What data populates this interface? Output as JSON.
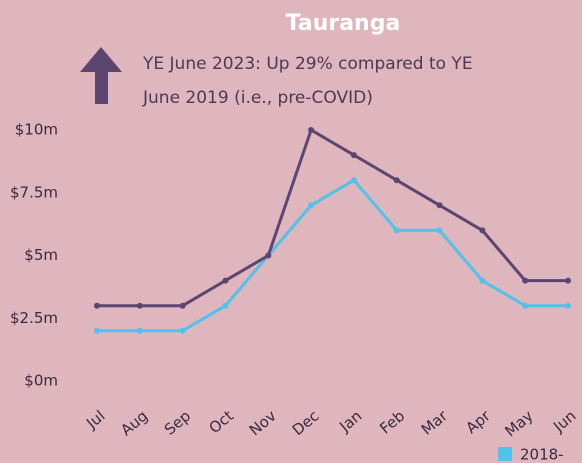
{
  "chart_data": {
    "type": "line",
    "title": "Tauranga",
    "annotation": [
      "YE June 2023: Up 29% compared to YE",
      "June 2019 (i.e., pre-COVID)"
    ],
    "categories": [
      "Jul",
      "Aug",
      "Sep",
      "Oct",
      "Nov",
      "Dec",
      "Jan",
      "Feb",
      "Mar",
      "Apr",
      "May",
      "Jun"
    ],
    "series": [
      {
        "name": "2018-",
        "color": "#4fc3ea",
        "values": [
          2,
          2,
          2,
          3,
          5,
          7,
          8,
          6,
          6,
          4,
          3,
          3
        ]
      },
      {
        "color": "#5c4670",
        "values": [
          3,
          3,
          3,
          4,
          5,
          10,
          9,
          8,
          7,
          6,
          4,
          4
        ]
      }
    ],
    "ylim": [
      0,
      10
    ],
    "yticks": [
      {
        "value": 0,
        "label": "$0m"
      },
      {
        "value": 2.5,
        "label": "$2.5m"
      },
      {
        "value": 5,
        "label": "$5m"
      },
      {
        "value": 7.5,
        "label": "$7.5m"
      },
      {
        "value": 10,
        "label": "$10m"
      }
    ],
    "grid": false
  }
}
